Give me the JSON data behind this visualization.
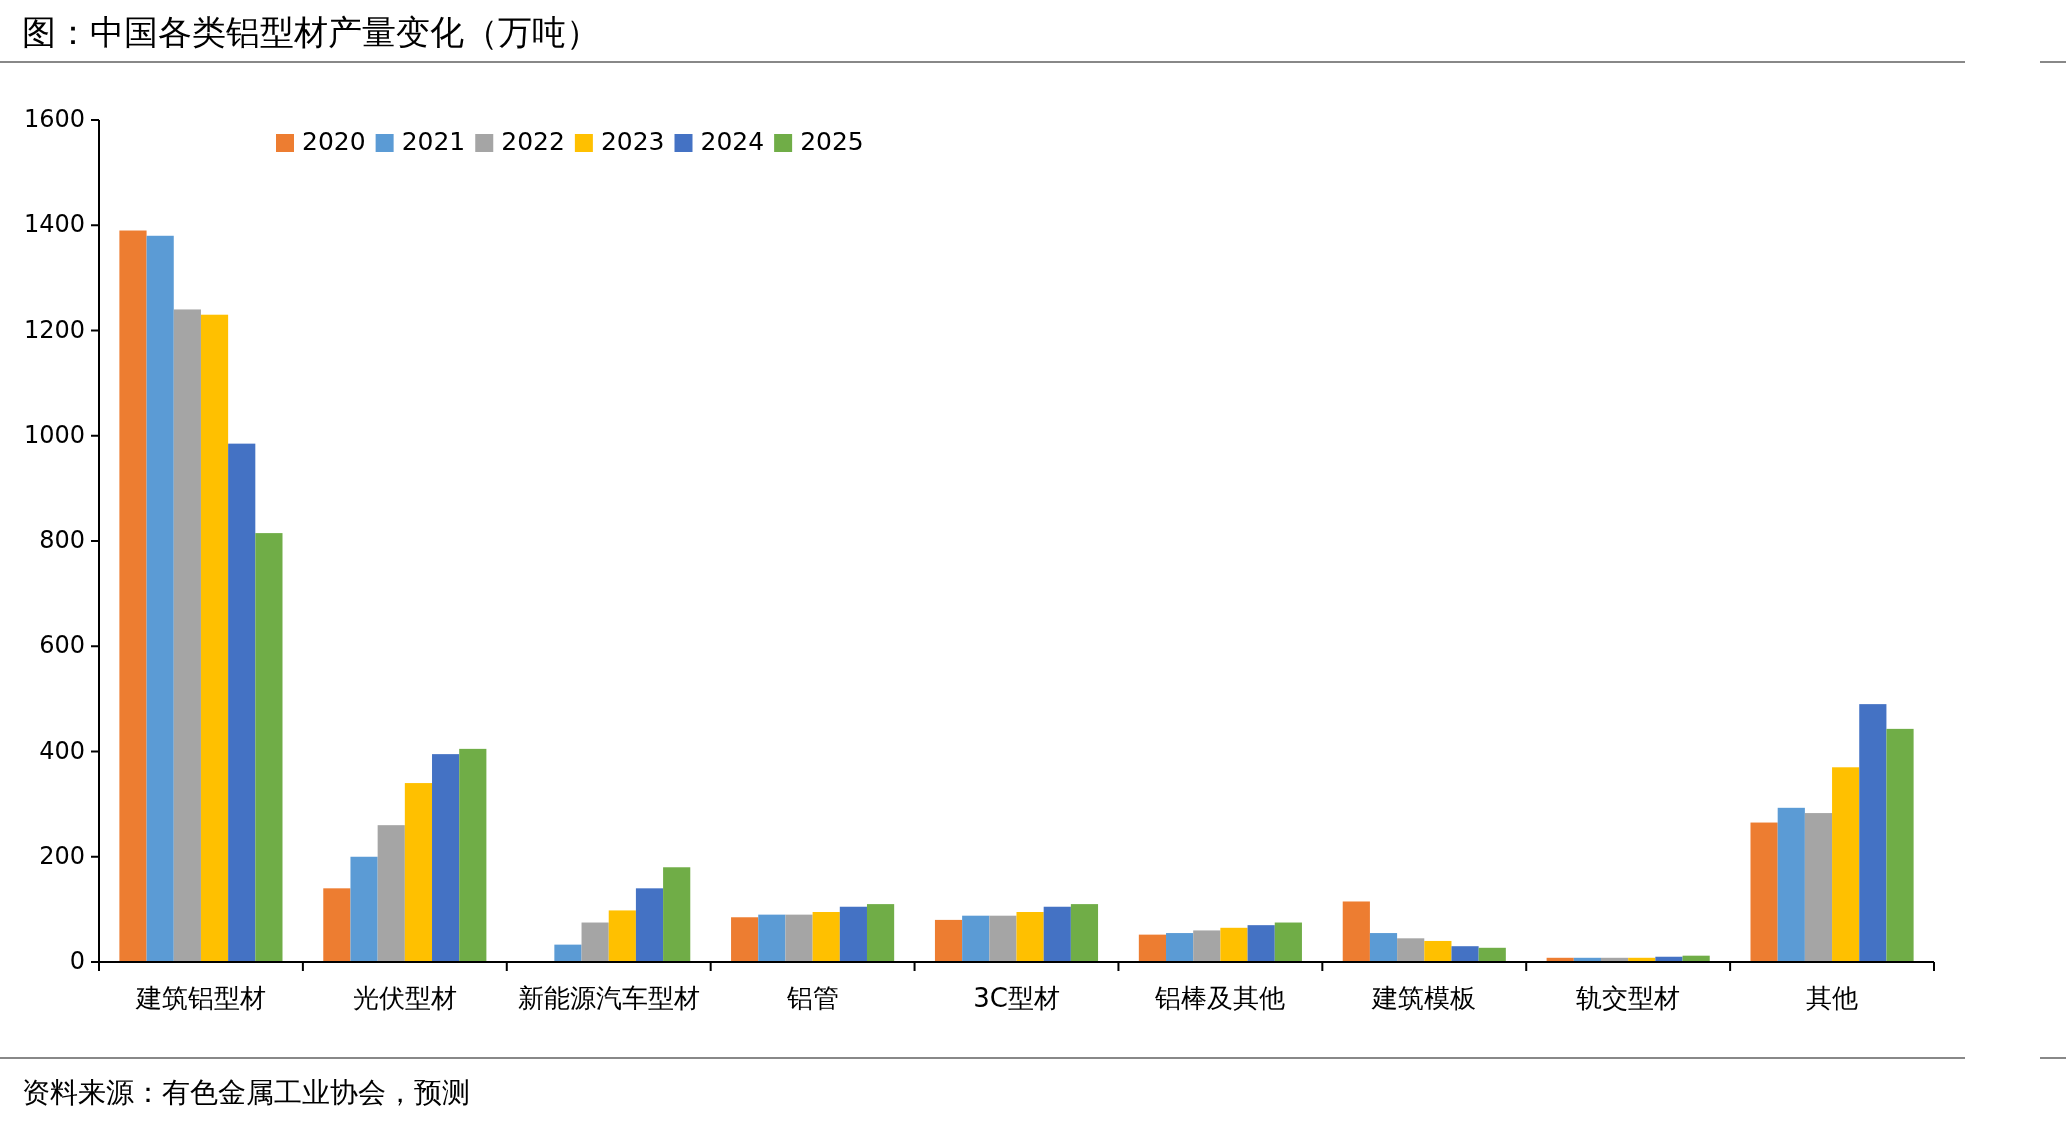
{
  "chart_data": {
    "type": "bar",
    "title": "图：中国各类铝型材产量变化（万吨）",
    "categories": [
      "建筑铝型材",
      "光伏型材",
      "新能源汽车型材",
      "铝管",
      "3C型材",
      "铝棒及其他",
      "建筑模板",
      "轨交型材",
      "其他"
    ],
    "series": [
      {
        "name": "2020",
        "color": "#ed7d31",
        "values": [
          1390,
          140,
          0,
          85,
          80,
          52,
          115,
          8,
          265
        ]
      },
      {
        "name": "2021",
        "color": "#5b9bd5",
        "values": [
          1380,
          200,
          33,
          90,
          88,
          55,
          55,
          8,
          293
        ]
      },
      {
        "name": "2022",
        "color": "#a5a5a5",
        "values": [
          1240,
          260,
          75,
          90,
          88,
          60,
          45,
          8,
          283
        ]
      },
      {
        "name": "2023",
        "color": "#ffc000",
        "values": [
          1230,
          340,
          98,
          95,
          95,
          65,
          40,
          8,
          370
        ]
      },
      {
        "name": "2024",
        "color": "#4472c4",
        "values": [
          985,
          395,
          140,
          105,
          105,
          70,
          30,
          10,
          490
        ]
      },
      {
        "name": "2025",
        "color": "#70ad47",
        "values": [
          815,
          405,
          180,
          110,
          110,
          75,
          27,
          12,
          443
        ]
      }
    ],
    "ylim": [
      0,
      1600
    ],
    "yticks": [
      0,
      200,
      400,
      600,
      800,
      1000,
      1200,
      1400,
      1600
    ],
    "legend": "top left",
    "grid": false,
    "annotations": [
      "资料来源：有色金属工业协会，预测"
    ]
  }
}
